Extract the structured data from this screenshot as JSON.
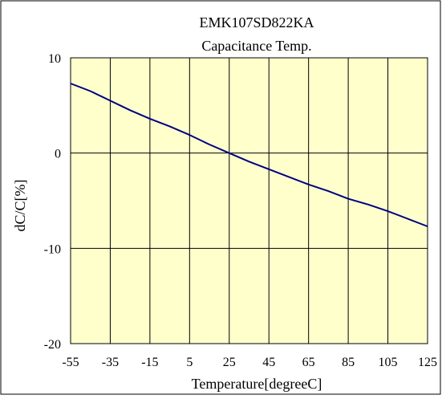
{
  "chart_data": {
    "type": "line",
    "title": "EMK107SD822KA",
    "subtitle": "Capacitance Temp.",
    "xlabel": "Temperature[degreeC]",
    "ylabel": "dC/C[%]",
    "xlim": [
      -55,
      125
    ],
    "ylim": [
      -20,
      10
    ],
    "xticks": [
      -55,
      -35,
      -15,
      5,
      25,
      45,
      65,
      85,
      105,
      125
    ],
    "yticks": [
      10,
      0,
      -10,
      -20
    ],
    "xtick_labels": [
      "-55",
      "-35",
      "-15",
      "5",
      "25",
      "45",
      "65",
      "85",
      "105",
      "125"
    ],
    "ytick_labels": [
      "10",
      "0",
      "-10",
      "-20"
    ],
    "grid": true,
    "colors": {
      "plot_background": "#ffffcc",
      "page_background": "#ffffff",
      "line": "#000080",
      "grid": "#000000"
    },
    "series": [
      {
        "x": [
          -55,
          -45,
          -35,
          -25,
          -15,
          -5,
          5,
          15,
          25,
          35,
          45,
          55,
          65,
          75,
          85,
          95,
          105,
          115,
          125
        ],
        "y": [
          7.3,
          6.5,
          5.5,
          4.5,
          3.6,
          2.8,
          1.9,
          0.9,
          0.0,
          -0.9,
          -1.7,
          -2.5,
          -3.3,
          -4.0,
          -4.8,
          -5.4,
          -6.1,
          -6.9,
          -7.7
        ]
      }
    ]
  }
}
